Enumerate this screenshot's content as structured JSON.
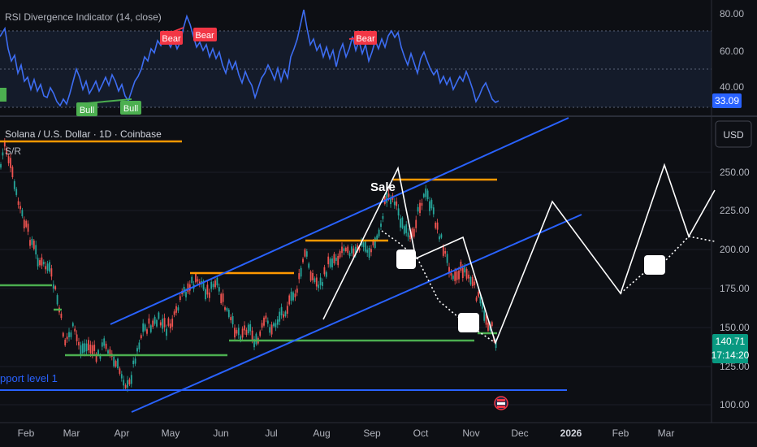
{
  "rsi": {
    "title": "RSI Divergence Indicator (14, close)",
    "ticks": [
      "80.00",
      "60.00",
      "40.00"
    ],
    "current": "33.09",
    "bear_label": "Bear",
    "bull_label": "Bull"
  },
  "price": {
    "title": "Solana / U.S. Dollar · 1D · Coinbase",
    "sr_label": "S/R",
    "currency_button": "USD",
    "ticks": [
      "250.00",
      "225.00",
      "200.00",
      "175.00",
      "150.00",
      "125.00",
      "100.00"
    ],
    "current_price": "140.71",
    "countdown": "17:14:20",
    "annotation_sale": "Sale",
    "support_label": "pport level 1"
  },
  "x_axis": [
    "Feb",
    "Mar",
    "Apr",
    "May",
    "Jun",
    "Jul",
    "Aug",
    "Sep",
    "Oct",
    "Nov",
    "Dec",
    "2026",
    "Feb",
    "Mar"
  ],
  "colors": {
    "background": "#0d0f14",
    "rsi_line": "#3d6df2",
    "bear": "#f23645",
    "bull": "#4caf50",
    "resistance": "#ff9800",
    "support": "#4caf50",
    "channel": "#2962ff",
    "candle_up": "#26a69a",
    "candle_down": "#ef5350",
    "projection": "#ffffff",
    "price_label": "#089981"
  },
  "icons": {
    "event_marker": "flag-icon"
  }
}
